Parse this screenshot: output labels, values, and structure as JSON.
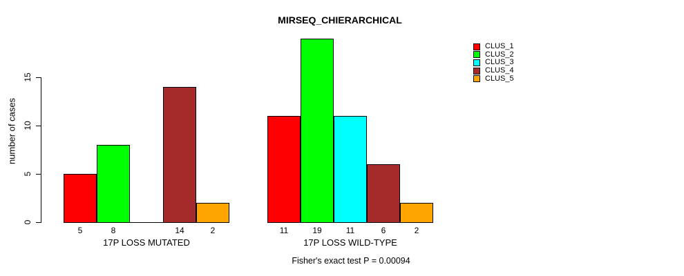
{
  "chart_data": {
    "type": "bar",
    "title": "MIRSEQ_CHIERARCHICAL",
    "ylabel": "number of cases",
    "xlabel": "",
    "yticks": [
      0,
      5,
      10,
      15
    ],
    "ylim": [
      0,
      19
    ],
    "grid": false,
    "legend_position": "top-right",
    "series": [
      "CLUS_1",
      "CLUS_2",
      "CLUS_3",
      "CLUS_4",
      "CLUS_5"
    ],
    "colors": [
      "#FF0000",
      "#00FF00",
      "#00FFFF",
      "#A52A2A",
      "#FFA500"
    ],
    "groups": [
      {
        "label": "17P LOSS MUTATED",
        "values": [
          5,
          8,
          0,
          14,
          2
        ]
      },
      {
        "label": "17P LOSS WILD-TYPE",
        "values": [
          11,
          19,
          11,
          6,
          2
        ]
      }
    ],
    "bar_value_labels_shown": true,
    "zero_value_labels_hidden": true,
    "footnote": "Fisher's exact test P = 0.00094"
  }
}
